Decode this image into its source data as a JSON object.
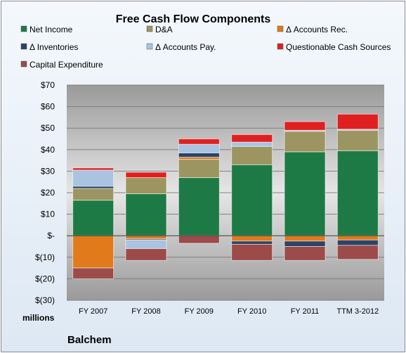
{
  "chart_data": {
    "type": "bar",
    "stacked": true,
    "title": "Free Cash Flow Components",
    "units_label": "millions",
    "company": "Balchem",
    "categories": [
      "FY 2007",
      "FY 2008",
      "FY 2009",
      "FY 2010",
      "FY 2011",
      "TTM 3-2012"
    ],
    "y_ticks": [
      "$70",
      "$60",
      "$50",
      "$40",
      "$30",
      "$20",
      "$10",
      "$-",
      "$(10)",
      "$(20)",
      "$(30)"
    ],
    "ylim": [
      -30,
      70
    ],
    "legend_position": "top",
    "grid": true,
    "series": [
      {
        "name": "Net Income",
        "color": "#1e7a45",
        "values": [
          16.5,
          19.5,
          27,
          33,
          39,
          39.5
        ]
      },
      {
        "name": "D&A",
        "color": "#9c9561",
        "values": [
          5.5,
          7.5,
          8.5,
          8.5,
          9.5,
          9.5
        ]
      },
      {
        "name": "Δ Accounts Rec.",
        "color": "#e07a1a",
        "values": [
          -15,
          -1.5,
          1,
          -2.5,
          -2.5,
          -2
        ]
      },
      {
        "name": "Δ Inventories",
        "color": "#2b4366",
        "values": [
          1,
          -0.5,
          2,
          -1.5,
          -2.5,
          -2.5
        ]
      },
      {
        "name": "Δ Accounts Pay.",
        "color": "#a9c3e0",
        "values": [
          7.5,
          -4,
          4,
          2,
          0.5,
          0.5
        ]
      },
      {
        "name": "Questionable Cash Sources",
        "color": "#e02020",
        "values": [
          1,
          2.5,
          2.5,
          3.5,
          4,
          7
        ]
      },
      {
        "name": "Capital Expenditure",
        "color": "#9c4a4a",
        "values": [
          -5,
          -5.5,
          -3.5,
          -7.5,
          -6.5,
          -6.5
        ]
      }
    ]
  }
}
